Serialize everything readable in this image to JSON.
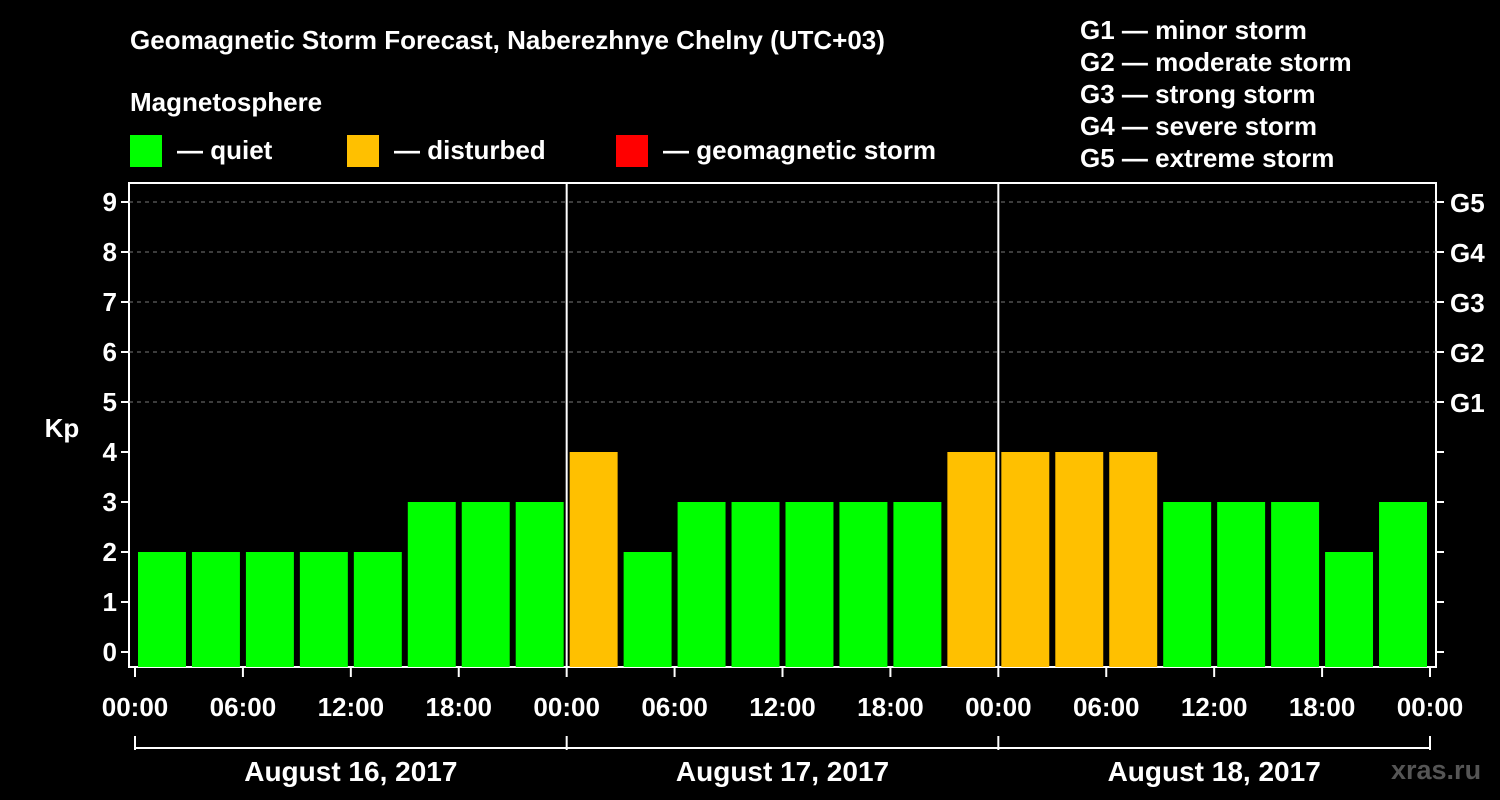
{
  "title": "Geomagnetic Storm Forecast, Naberezhnye Chelny (UTC+03)",
  "legend": {
    "heading": "Magnetosphere",
    "quiet": "— quiet",
    "disturbed": "— disturbed",
    "storm": "— geomagnetic storm",
    "colors": {
      "quiet": "#00ff00",
      "disturbed": "#ffc000",
      "storm": "#ff0000"
    }
  },
  "storm_scale": [
    "G1 — minor storm",
    "G2 — moderate storm",
    "G3 — strong storm",
    "G4 — severe storm",
    "G5 — extreme storm"
  ],
  "watermark": "xras.ru",
  "chart_data": {
    "type": "bar",
    "ylabel": "Kp",
    "ylim": [
      0,
      9
    ],
    "yticks": [
      "0",
      "1",
      "2",
      "3",
      "4",
      "5",
      "6",
      "7",
      "8",
      "9"
    ],
    "right_ticks": [
      {
        "kp": 5,
        "label": "G1"
      },
      {
        "kp": 6,
        "label": "G2"
      },
      {
        "kp": 7,
        "label": "G3"
      },
      {
        "kp": 8,
        "label": "G4"
      },
      {
        "kp": 9,
        "label": "G5"
      }
    ],
    "xticks": [
      "00:00",
      "06:00",
      "12:00",
      "18:00",
      "00:00",
      "06:00",
      "12:00",
      "18:00",
      "00:00",
      "06:00",
      "12:00",
      "18:00",
      "00:00"
    ],
    "days": [
      "August 16, 2017",
      "August 17, 2017",
      "August 18, 2017"
    ],
    "interval_hours": 3,
    "values": [
      2,
      2,
      2,
      2,
      2,
      3,
      3,
      3,
      4,
      2,
      3,
      3,
      3,
      3,
      3,
      4,
      4,
      4,
      4,
      3,
      3,
      3,
      2,
      3
    ],
    "categories": [
      "quiet",
      "quiet",
      "quiet",
      "quiet",
      "quiet",
      "quiet",
      "quiet",
      "quiet",
      "disturbed",
      "quiet",
      "quiet",
      "quiet",
      "quiet",
      "quiet",
      "quiet",
      "disturbed",
      "disturbed",
      "disturbed",
      "disturbed",
      "quiet",
      "quiet",
      "quiet",
      "quiet",
      "quiet"
    ],
    "grid": true
  }
}
